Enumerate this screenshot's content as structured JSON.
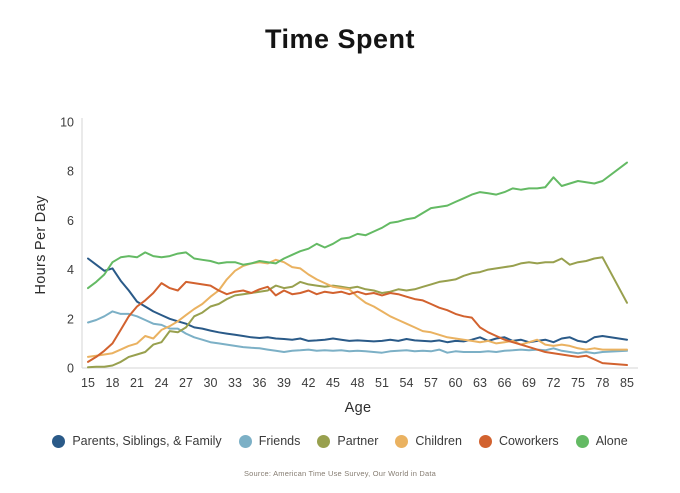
{
  "title": "Time Spent",
  "axes": {
    "y_label": "Hours Per Day",
    "x_label": "Age",
    "y_ticks": [
      0,
      2,
      4,
      6,
      8,
      10
    ],
    "x_ticks": [
      "15",
      "18",
      "21",
      "24",
      "27",
      "30",
      "33",
      "36",
      "39",
      "42",
      "45",
      "48",
      "51",
      "54",
      "57",
      "60",
      "63",
      "66",
      "69",
      "72",
      "75",
      "78",
      "85"
    ]
  },
  "source": "Source: American Time Use Survey, Our World in Data",
  "chart_data": {
    "type": "line",
    "title": "Time Spent",
    "xlabel": "Age",
    "ylabel": "Hours Per Day",
    "ylim": [
      0,
      10
    ],
    "xlim": [
      15,
      85
    ],
    "grid": false,
    "legend_position": "bottom",
    "x": [
      15,
      16,
      17,
      18,
      19,
      20,
      21,
      22,
      23,
      24,
      25,
      26,
      27,
      28,
      29,
      30,
      31,
      32,
      33,
      34,
      35,
      36,
      37,
      38,
      39,
      40,
      41,
      42,
      43,
      44,
      45,
      46,
      47,
      48,
      49,
      50,
      51,
      52,
      53,
      54,
      55,
      56,
      57,
      58,
      59,
      60,
      61,
      62,
      63,
      64,
      65,
      66,
      67,
      68,
      69,
      70,
      71,
      72,
      73,
      74,
      75,
      76,
      77,
      78,
      85
    ],
    "series": [
      {
        "name": "Parents, Siblings, & Family",
        "color": "#2a5a88",
        "values": [
          4.45,
          4.2,
          3.95,
          4.05,
          3.55,
          3.15,
          2.7,
          2.5,
          2.3,
          2.15,
          2.0,
          1.9,
          1.8,
          1.65,
          1.6,
          1.52,
          1.45,
          1.4,
          1.35,
          1.3,
          1.25,
          1.22,
          1.25,
          1.2,
          1.18,
          1.15,
          1.2,
          1.1,
          1.12,
          1.15,
          1.2,
          1.15,
          1.1,
          1.12,
          1.1,
          1.08,
          1.1,
          1.15,
          1.1,
          1.18,
          1.12,
          1.1,
          1.08,
          1.12,
          1.05,
          1.1,
          1.08,
          1.15,
          1.25,
          1.1,
          1.2,
          1.25,
          1.1,
          1.15,
          1.05,
          1.1,
          1.15,
          1.05,
          1.2,
          1.25,
          1.1,
          1.05,
          1.25,
          1.3,
          1.15
        ]
      },
      {
        "name": "Friends",
        "color": "#7cb0c6",
        "values": [
          1.85,
          1.95,
          2.1,
          2.3,
          2.2,
          2.2,
          2.1,
          1.95,
          1.8,
          1.75,
          1.6,
          1.6,
          1.4,
          1.25,
          1.15,
          1.05,
          1.0,
          0.95,
          0.9,
          0.85,
          0.82,
          0.8,
          0.75,
          0.7,
          0.65,
          0.7,
          0.72,
          0.75,
          0.7,
          0.72,
          0.7,
          0.72,
          0.68,
          0.7,
          0.68,
          0.65,
          0.62,
          0.68,
          0.7,
          0.72,
          0.68,
          0.7,
          0.68,
          0.75,
          0.62,
          0.68,
          0.65,
          0.65,
          0.65,
          0.68,
          0.65,
          0.7,
          0.72,
          0.75,
          0.72,
          0.75,
          0.72,
          0.8,
          0.7,
          0.65,
          0.6,
          0.65,
          0.6,
          0.65,
          0.7
        ]
      },
      {
        "name": "Partner",
        "color": "#98a04e",
        "values": [
          0.03,
          0.05,
          0.05,
          0.1,
          0.25,
          0.45,
          0.55,
          0.65,
          0.95,
          1.05,
          1.5,
          1.45,
          1.65,
          2.1,
          2.25,
          2.5,
          2.6,
          2.8,
          2.95,
          3.0,
          3.05,
          3.1,
          3.15,
          3.35,
          3.25,
          3.3,
          3.5,
          3.4,
          3.35,
          3.3,
          3.35,
          3.3,
          3.25,
          3.3,
          3.2,
          3.15,
          3.05,
          3.1,
          3.2,
          3.15,
          3.2,
          3.3,
          3.4,
          3.5,
          3.55,
          3.6,
          3.75,
          3.85,
          3.9,
          4.0,
          4.05,
          4.1,
          4.15,
          4.25,
          4.3,
          4.25,
          4.3,
          4.3,
          4.45,
          4.2,
          4.3,
          4.35,
          4.45,
          4.5,
          2.65
        ]
      },
      {
        "name": "Children",
        "color": "#eab261",
        "values": [
          0.45,
          0.5,
          0.55,
          0.6,
          0.75,
          0.9,
          1.0,
          1.3,
          1.2,
          1.55,
          1.7,
          1.9,
          2.15,
          2.4,
          2.6,
          2.9,
          3.15,
          3.6,
          3.95,
          4.15,
          4.25,
          4.3,
          4.25,
          4.4,
          4.3,
          4.1,
          4.05,
          3.8,
          3.6,
          3.45,
          3.3,
          3.25,
          3.2,
          2.9,
          2.65,
          2.5,
          2.3,
          2.1,
          1.95,
          1.8,
          1.65,
          1.5,
          1.45,
          1.35,
          1.25,
          1.2,
          1.15,
          1.1,
          1.05,
          1.1,
          1.0,
          1.05,
          1.1,
          0.95,
          1.05,
          1.15,
          0.95,
          0.9,
          0.95,
          0.9,
          0.8,
          0.75,
          0.8,
          0.75,
          0.75
        ]
      },
      {
        "name": "Coworkers",
        "color": "#d2622f",
        "values": [
          0.25,
          0.45,
          0.7,
          1.0,
          1.55,
          2.1,
          2.5,
          2.75,
          3.05,
          3.45,
          3.25,
          3.15,
          3.5,
          3.45,
          3.4,
          3.35,
          3.15,
          3.0,
          3.1,
          3.15,
          3.05,
          3.2,
          3.3,
          2.95,
          3.15,
          3.0,
          3.05,
          3.15,
          3.0,
          3.1,
          3.05,
          3.1,
          3.0,
          3.1,
          3.0,
          3.05,
          2.95,
          3.05,
          3.0,
          2.9,
          2.8,
          2.75,
          2.6,
          2.45,
          2.35,
          2.2,
          2.1,
          2.05,
          1.65,
          1.45,
          1.3,
          1.15,
          1.05,
          0.95,
          0.85,
          0.75,
          0.65,
          0.6,
          0.55,
          0.5,
          0.45,
          0.5,
          0.35,
          0.2,
          0.12
        ]
      },
      {
        "name": "Alone",
        "color": "#64ba64",
        "values": [
          3.25,
          3.5,
          3.8,
          4.3,
          4.5,
          4.55,
          4.5,
          4.7,
          4.55,
          4.5,
          4.55,
          4.65,
          4.7,
          4.45,
          4.4,
          4.35,
          4.25,
          4.3,
          4.3,
          4.2,
          4.25,
          4.35,
          4.3,
          4.25,
          4.45,
          4.6,
          4.75,
          4.85,
          5.05,
          4.9,
          5.05,
          5.25,
          5.3,
          5.45,
          5.4,
          5.55,
          5.7,
          5.9,
          5.95,
          6.05,
          6.1,
          6.3,
          6.5,
          6.55,
          6.6,
          6.75,
          6.9,
          7.05,
          7.15,
          7.1,
          7.05,
          7.15,
          7.3,
          7.25,
          7.3,
          7.3,
          7.35,
          7.75,
          7.4,
          7.5,
          7.6,
          7.55,
          7.5,
          7.6,
          8.35
        ]
      }
    ]
  }
}
